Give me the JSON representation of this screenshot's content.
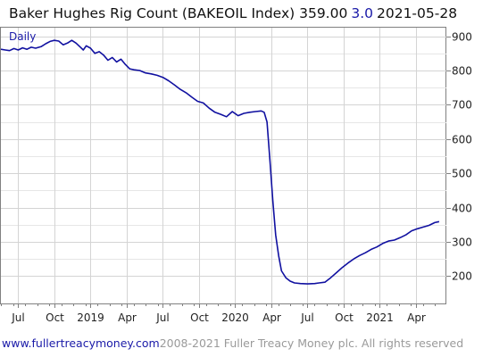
{
  "header": {
    "title": "Baker Hughes Rig Count (BAKEOIL Index) 359.00",
    "change": "3.0",
    "date": "2021-05-28"
  },
  "footer": {
    "url": "www.fullertreacymoney.com",
    "copyright": "2008-2021 Fuller Treacy Money plc. All rights reserved"
  },
  "colors": {
    "line": "#1010a0",
    "grid": "#d4d4d4",
    "frame": "#808080",
    "label": "#1a1aa8"
  },
  "chart_data": {
    "type": "line",
    "frequency_label": "Daily",
    "ylim": [
      120,
      925
    ],
    "yticks": [
      200,
      300,
      400,
      500,
      600,
      700,
      800,
      900
    ],
    "xlim": [
      2018.38,
      2021.46
    ],
    "xticks": [
      {
        "x": 2018.5,
        "label": "Jul"
      },
      {
        "x": 2018.75,
        "label": "Oct"
      },
      {
        "x": 2019.0,
        "label": "2019"
      },
      {
        "x": 2019.25,
        "label": "Apr"
      },
      {
        "x": 2019.5,
        "label": "Jul"
      },
      {
        "x": 2019.75,
        "label": "Oct"
      },
      {
        "x": 2020.0,
        "label": "2020"
      },
      {
        "x": 2020.25,
        "label": "Apr"
      },
      {
        "x": 2020.5,
        "label": "Jul"
      },
      {
        "x": 2020.75,
        "label": "Oct"
      },
      {
        "x": 2021.0,
        "label": "2021"
      },
      {
        "x": 2021.25,
        "label": "Apr"
      }
    ],
    "x": [
      2018.38,
      2018.41,
      2018.44,
      2018.47,
      2018.5,
      2018.53,
      2018.56,
      2018.59,
      2018.62,
      2018.66,
      2018.69,
      2018.72,
      2018.75,
      2018.78,
      2018.81,
      2018.84,
      2018.87,
      2018.9,
      2018.93,
      2018.95,
      2018.97,
      2019.0,
      2019.03,
      2019.06,
      2019.09,
      2019.12,
      2019.15,
      2019.18,
      2019.21,
      2019.24,
      2019.27,
      2019.3,
      2019.34,
      2019.38,
      2019.42,
      2019.46,
      2019.5,
      2019.54,
      2019.58,
      2019.62,
      2019.66,
      2019.7,
      2019.74,
      2019.78,
      2019.82,
      2019.86,
      2019.9,
      2019.94,
      2019.98,
      2020.02,
      2020.06,
      2020.1,
      2020.14,
      2020.18,
      2020.2,
      2020.22,
      2020.24,
      2020.26,
      2020.28,
      2020.3,
      2020.32,
      2020.35,
      2020.38,
      2020.41,
      2020.45,
      2020.5,
      2020.55,
      2020.58,
      2020.62,
      2020.66,
      2020.7,
      2020.74,
      2020.78,
      2020.82,
      2020.86,
      2020.9,
      2020.94,
      2020.98,
      2021.02,
      2021.06,
      2021.1,
      2021.14,
      2021.18,
      2021.22,
      2021.26,
      2021.3,
      2021.34,
      2021.38,
      2021.41
    ],
    "values": [
      862,
      860,
      858,
      864,
      860,
      866,
      862,
      868,
      865,
      870,
      878,
      885,
      888,
      886,
      875,
      880,
      888,
      880,
      868,
      860,
      872,
      865,
      850,
      855,
      845,
      830,
      838,
      825,
      833,
      818,
      805,
      802,
      800,
      793,
      790,
      786,
      780,
      770,
      758,
      745,
      735,
      722,
      710,
      705,
      690,
      678,
      672,
      665,
      680,
      668,
      675,
      678,
      680,
      682,
      678,
      650,
      540,
      420,
      320,
      260,
      215,
      195,
      185,
      180,
      178,
      177,
      178,
      180,
      182,
      195,
      210,
      225,
      238,
      250,
      260,
      268,
      278,
      285,
      295,
      302,
      305,
      312,
      320,
      332,
      338,
      343,
      348,
      356,
      359
    ]
  }
}
